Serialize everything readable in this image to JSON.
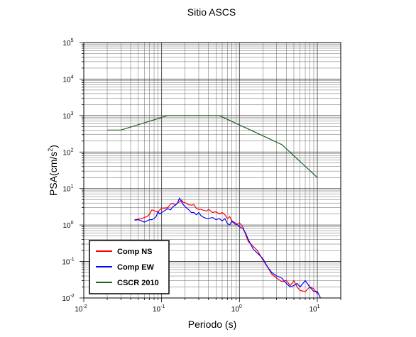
{
  "chart_data": {
    "type": "line",
    "title": "Sitio ASCS",
    "xlabel": "Periodo (s)",
    "ylabel_base": "PSA(cm/s",
    "ylabel_sup": "2",
    "ylabel_close": ")",
    "xscale": "log",
    "yscale": "log",
    "xlim": [
      0.01,
      20
    ],
    "ylim": [
      0.01,
      100000
    ],
    "grid": true,
    "legend_position": "bottom-left",
    "x_ticks": [
      {
        "base": "10",
        "exp": "-2",
        "value": 0.01
      },
      {
        "base": "10",
        "exp": "-1",
        "value": 0.1
      },
      {
        "base": "10",
        "exp": "0",
        "value": 1
      },
      {
        "base": "10",
        "exp": "1",
        "value": 10
      }
    ],
    "y_ticks": [
      {
        "base": "10",
        "exp": "-2",
        "value": 0.01
      },
      {
        "base": "10",
        "exp": "-1",
        "value": 0.1
      },
      {
        "base": "10",
        "exp": "0",
        "value": 1
      },
      {
        "base": "10",
        "exp": "1",
        "value": 10
      },
      {
        "base": "10",
        "exp": "2",
        "value": 100
      },
      {
        "base": "10",
        "exp": "3",
        "value": 1000
      },
      {
        "base": "10",
        "exp": "4",
        "value": 10000
      },
      {
        "base": "10",
        "exp": "5",
        "value": 100000
      }
    ],
    "series": [
      {
        "name": "Comp NS",
        "color": "#ff0000",
        "x": [
          0.045,
          0.05,
          0.055,
          0.06,
          0.065,
          0.07,
          0.075,
          0.08,
          0.085,
          0.09,
          0.095,
          0.1,
          0.11,
          0.12,
          0.13,
          0.14,
          0.15,
          0.16,
          0.17,
          0.18,
          0.19,
          0.2,
          0.22,
          0.24,
          0.26,
          0.28,
          0.3,
          0.32,
          0.35,
          0.38,
          0.4,
          0.45,
          0.5,
          0.55,
          0.6,
          0.65,
          0.7,
          0.75,
          0.8,
          0.9,
          1.0,
          1.1,
          1.2,
          1.3,
          1.5,
          1.7,
          2.0,
          2.3,
          2.6,
          3.0,
          3.5,
          4.0,
          4.5,
          5.0,
          5.5,
          6.0,
          7.0,
          8.0,
          9.0,
          10.0
        ],
        "y": [
          1.4,
          1.45,
          1.5,
          1.6,
          1.7,
          2.0,
          2.6,
          2.5,
          2.3,
          2.3,
          2.6,
          2.9,
          2.9,
          3.0,
          3.7,
          3.9,
          3.5,
          4.0,
          4.3,
          4.8,
          4.2,
          4.1,
          3.6,
          3.5,
          3.6,
          2.8,
          2.7,
          2.7,
          2.5,
          2.4,
          2.7,
          2.2,
          2.3,
          2.0,
          2.2,
          1.9,
          1.5,
          1.7,
          1.25,
          1.0,
          1.15,
          0.9,
          0.55,
          0.35,
          0.26,
          0.2,
          0.11,
          0.07,
          0.045,
          0.035,
          0.028,
          0.03,
          0.022,
          0.03,
          0.02,
          0.016,
          0.015,
          0.02,
          0.018,
          0.013
        ]
      },
      {
        "name": "Comp EW",
        "color": "#0000ff",
        "x": [
          0.045,
          0.05,
          0.055,
          0.06,
          0.065,
          0.07,
          0.075,
          0.08,
          0.085,
          0.09,
          0.095,
          0.1,
          0.11,
          0.12,
          0.13,
          0.14,
          0.15,
          0.16,
          0.17,
          0.18,
          0.19,
          0.2,
          0.22,
          0.24,
          0.26,
          0.28,
          0.3,
          0.32,
          0.35,
          0.38,
          0.4,
          0.45,
          0.5,
          0.55,
          0.6,
          0.65,
          0.7,
          0.75,
          0.8,
          0.9,
          1.0,
          1.1,
          1.2,
          1.3,
          1.5,
          1.7,
          2.0,
          2.3,
          2.6,
          3.0,
          3.5,
          4.0,
          4.5,
          5.0,
          5.5,
          6.0,
          7.0,
          8.0,
          9.0,
          10.0,
          11.0
        ],
        "y": [
          1.35,
          1.4,
          1.3,
          1.2,
          1.3,
          1.4,
          1.4,
          1.5,
          1.7,
          2.3,
          2.0,
          2.2,
          2.5,
          2.8,
          2.6,
          3.2,
          3.5,
          4.0,
          5.5,
          4.3,
          3.6,
          3.2,
          2.7,
          2.2,
          2.2,
          1.9,
          2.2,
          1.8,
          1.6,
          1.5,
          1.5,
          1.6,
          1.4,
          1.5,
          1.3,
          1.5,
          1.1,
          1.0,
          1.3,
          1.1,
          0.9,
          0.8,
          0.6,
          0.4,
          0.22,
          0.17,
          0.12,
          0.07,
          0.05,
          0.04,
          0.035,
          0.025,
          0.02,
          0.022,
          0.025,
          0.02,
          0.03,
          0.02,
          0.015,
          0.015,
          0.01
        ]
      },
      {
        "name": "CSCR 2010",
        "color": "#1f5f1f",
        "x": [
          0.02,
          0.03,
          0.12,
          0.55,
          3.5,
          10.0
        ],
        "y": [
          400,
          400,
          1000,
          1000,
          160,
          20
        ]
      }
    ]
  }
}
